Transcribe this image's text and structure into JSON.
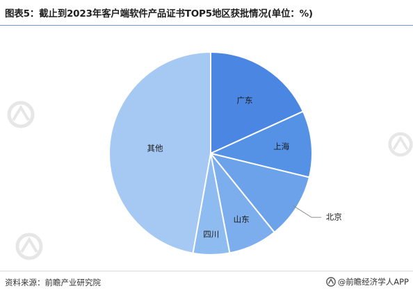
{
  "title": "图表5：截止到2023年客户端软件产品证书TOP5地区获批情况(单位：%)",
  "source": "资料来源：前瞻产业研究院",
  "brand": "@前瞻经济学人APP",
  "watermark_icon": "qianzhan-logo-icon",
  "chart_data": {
    "type": "pie",
    "title": "图表5：截止到2023年客户端软件产品证书TOP5地区获批情况(单位：%)",
    "start_angle_deg": 0,
    "direction": "clockwise",
    "legend": "none",
    "slices": [
      {
        "label": "广东",
        "value": 18.2,
        "color": "#4a86e2"
      },
      {
        "label": "上海",
        "value": 10.6,
        "color": "#5592e6"
      },
      {
        "label": "北京",
        "value": 10.4,
        "color": "#6ba2ea"
      },
      {
        "label": "山东",
        "value": 7.8,
        "color": "#7caeee"
      },
      {
        "label": "四川",
        "value": 5.8,
        "color": "#8fbcf0"
      },
      {
        "label": "其他",
        "value": 47.2,
        "color": "#a6c9f4"
      }
    ]
  }
}
